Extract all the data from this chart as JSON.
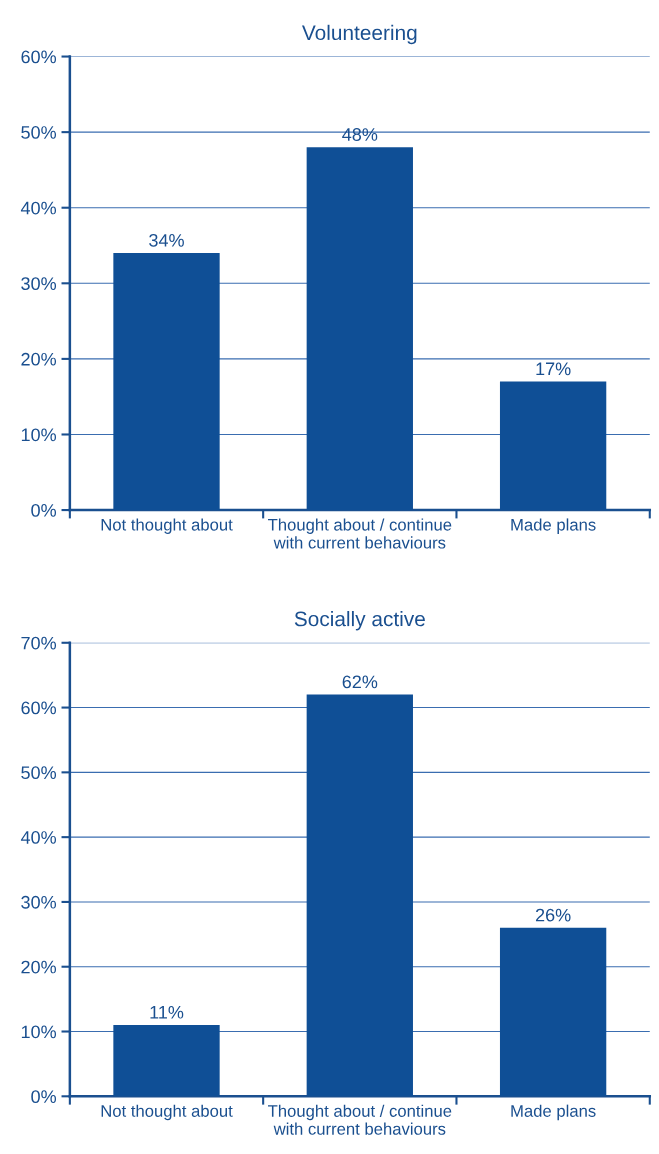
{
  "chart_data": [
    {
      "type": "bar",
      "title": "Volunteering",
      "categories": [
        "Not thought about",
        "Thought about / continue\nwith current behaviours",
        "Made plans"
      ],
      "values": [
        34,
        48,
        17
      ],
      "color": "#0f4f96",
      "value_labels": [
        "34%",
        "48%",
        "17%"
      ],
      "ylim": [
        0,
        60
      ],
      "yticks": [
        {
          "value": 0,
          "label": "0%"
        },
        {
          "value": 10,
          "label": "10%"
        },
        {
          "value": 20,
          "label": "20%"
        },
        {
          "value": 30,
          "label": "30%"
        },
        {
          "value": 40,
          "label": "40%"
        },
        {
          "value": 50,
          "label": "50%"
        },
        {
          "value": 60,
          "label": "60%"
        }
      ],
      "grid": "y"
    },
    {
      "type": "bar",
      "title": "Socially active",
      "categories": [
        "Not thought about",
        "Thought about / continue\nwith current behaviours",
        "Made plans"
      ],
      "values": [
        11,
        62,
        26
      ],
      "color": "#0f4f96",
      "value_labels": [
        "11%",
        "62%",
        "26%"
      ],
      "ylim": [
        0,
        70
      ],
      "yticks": [
        {
          "value": 0,
          "label": "0%"
        },
        {
          "value": 10,
          "label": "10%"
        },
        {
          "value": 20,
          "label": "20%"
        },
        {
          "value": 30,
          "label": "30%"
        },
        {
          "value": 40,
          "label": "40%"
        },
        {
          "value": 50,
          "label": "50%"
        },
        {
          "value": 60,
          "label": "60%"
        },
        {
          "value": 70,
          "label": "70%"
        }
      ],
      "grid": "y"
    }
  ]
}
